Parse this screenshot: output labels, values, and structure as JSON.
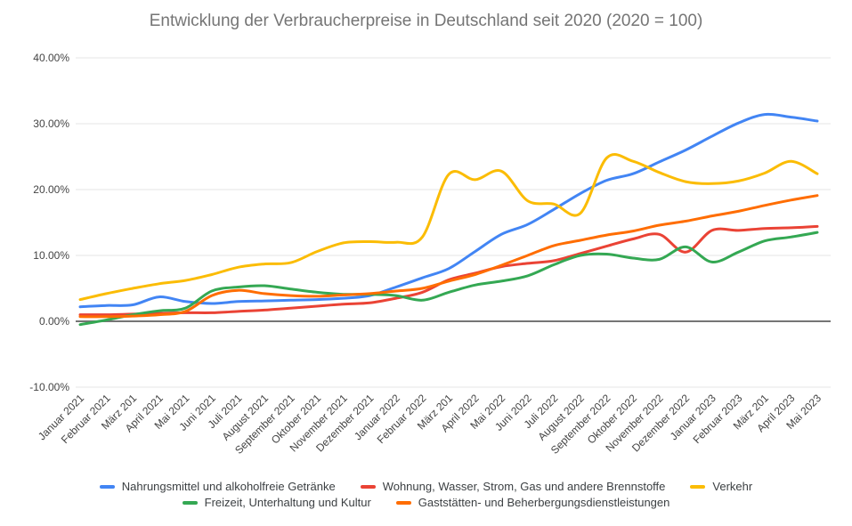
{
  "title": "Entwicklung der Verbraucherpreise in Deutschland seit 2020 (2020 = 100)",
  "chart_data": {
    "type": "line",
    "title": "Entwicklung der Verbraucherpreise in Deutschland seit 2020 (2020 = 100)",
    "curve": "smooth",
    "grid": true,
    "legend_position": "bottom",
    "y_axis": {
      "min": -10,
      "max": 40,
      "format": "percent",
      "tick_labels": [
        "40.00%",
        "30.00%",
        "20.00%",
        "10.00%",
        "0.00%",
        "-10.00%"
      ],
      "tick_values": [
        40,
        30,
        20,
        10,
        0,
        -10
      ],
      "baseline_value": 0
    },
    "categories": [
      "Januar 2021",
      "Februar 2021",
      "März 201",
      "April 2021",
      "Mai 2021",
      "Juni 2021",
      "Juli 2021",
      "August 2021",
      "September 2021",
      "Oktober 2021",
      "November 2021",
      "Dezember 2021",
      "Januar 2022",
      "Februar 2022",
      "März 201",
      "April 2022",
      "Mai 2022",
      "Juni 2022",
      "Juli 2022",
      "August 2022",
      "September 2022",
      "Oktober 2022",
      "November 2022",
      "Dezember 2022",
      "Januar 2023",
      "Februar 2023",
      "März 201",
      "April 2023",
      "Mai 2023"
    ],
    "series": [
      {
        "name": "Nahrungsmittel und alkoholfreie Getränke",
        "color": "#4285F4",
        "values": [
          2.2,
          2.4,
          2.5,
          3.7,
          3.0,
          2.7,
          3.0,
          3.1,
          3.2,
          3.3,
          3.5,
          3.9,
          5.2,
          6.6,
          8.0,
          10.6,
          13.2,
          14.7,
          17.0,
          19.4,
          21.4,
          22.4,
          24.2,
          26.0,
          28.1,
          30.1,
          31.4,
          31.0,
          30.4
        ]
      },
      {
        "name": "Wohnung, Wasser, Strom, Gas und andere Brennstoffe",
        "color": "#EA4335",
        "values": [
          1.0,
          1.0,
          1.1,
          1.2,
          1.3,
          1.3,
          1.5,
          1.7,
          2.0,
          2.3,
          2.6,
          2.8,
          3.5,
          4.4,
          6.3,
          7.3,
          8.3,
          8.8,
          9.2,
          10.3,
          11.4,
          12.5,
          13.2,
          10.5,
          13.8,
          13.8,
          14.1,
          14.2,
          14.4
        ]
      },
      {
        "name": "Verkehr",
        "color": "#FBBC04",
        "values": [
          3.3,
          4.2,
          5.0,
          5.7,
          6.2,
          7.1,
          8.2,
          8.7,
          8.9,
          10.6,
          11.9,
          12.1,
          12.0,
          12.8,
          22.3,
          21.5,
          22.8,
          18.3,
          17.8,
          16.4,
          24.8,
          24.3,
          22.6,
          21.2,
          20.9,
          21.3,
          22.5,
          24.3,
          22.4
        ]
      },
      {
        "name": "Freizeit, Unterhaltung und Kultur",
        "color": "#34A853",
        "values": [
          -0.5,
          0.2,
          1.0,
          1.6,
          2.0,
          4.6,
          5.2,
          5.4,
          4.9,
          4.4,
          4.1,
          4.1,
          3.9,
          3.2,
          4.4,
          5.5,
          6.1,
          6.9,
          8.6,
          10.0,
          10.2,
          9.6,
          9.4,
          11.3,
          9.0,
          10.5,
          12.2,
          12.8,
          13.5
        ]
      },
      {
        "name": "Gaststätten- und Beherbergungsdienstleistungen",
        "color": "#FF6D01",
        "values": [
          0.7,
          0.7,
          0.8,
          1.0,
          1.5,
          3.9,
          4.7,
          4.2,
          3.9,
          3.8,
          4.0,
          4.2,
          4.6,
          5.0,
          6.1,
          7.1,
          8.5,
          10.0,
          11.5,
          12.3,
          13.1,
          13.7,
          14.6,
          15.2,
          16.0,
          16.7,
          17.6,
          18.4,
          19.1
        ]
      }
    ],
    "legend_rows": [
      [
        0,
        1,
        2
      ],
      [
        3,
        4
      ]
    ]
  },
  "style_colors": {
    "gridline": "#e6e6e6",
    "baseline": "#757575",
    "axis_text": "#444444",
    "title_text": "#757575",
    "legend_text": "#3c4043",
    "background": "#ffffff"
  }
}
